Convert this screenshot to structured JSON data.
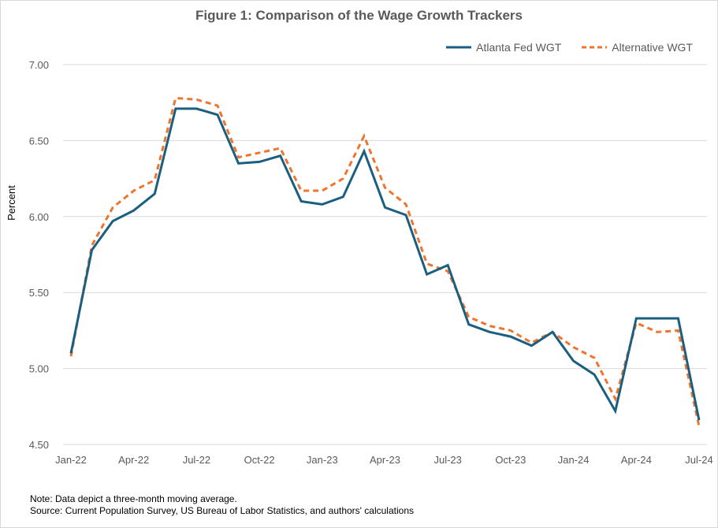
{
  "chart_data": {
    "type": "line",
    "title": "Figure 1: Comparison of the Wage Growth Trackers",
    "ylabel": "Percent",
    "xlabel": "",
    "ylim": [
      4.5,
      7.0
    ],
    "yticks": [
      "7.00",
      "6.50",
      "6.00",
      "5.50",
      "5.00",
      "4.50"
    ],
    "ytick_values": [
      7.0,
      6.5,
      6.0,
      5.5,
      5.0,
      4.5
    ],
    "xticks": [
      "Jan-22",
      "Apr-22",
      "Jul-22",
      "Oct-22",
      "Jan-23",
      "Apr-23",
      "Jul-23",
      "Oct-23",
      "Jan-24",
      "Apr-24",
      "Jul-24"
    ],
    "x": [
      "Jan-22",
      "Feb-22",
      "Mar-22",
      "Apr-22",
      "May-22",
      "Jun-22",
      "Jul-22",
      "Aug-22",
      "Sep-22",
      "Oct-22",
      "Nov-22",
      "Dec-22",
      "Jan-23",
      "Feb-23",
      "Mar-23",
      "Apr-23",
      "May-23",
      "Jun-23",
      "Jul-23",
      "Aug-23",
      "Sep-23",
      "Oct-23",
      "Nov-23",
      "Dec-23",
      "Jan-24",
      "Feb-24",
      "Mar-24",
      "Apr-24",
      "May-24",
      "Jun-24",
      "Jul-24"
    ],
    "grid": true,
    "legend": "top-right",
    "series": [
      {
        "name": "Atlanta Fed WGT",
        "color": "#1b5f80",
        "style": "solid",
        "values": [
          5.1,
          5.78,
          5.97,
          6.04,
          6.15,
          6.71,
          6.71,
          6.67,
          6.35,
          6.36,
          6.4,
          6.1,
          6.08,
          6.13,
          6.43,
          6.06,
          6.01,
          5.62,
          5.68,
          5.29,
          5.24,
          5.21,
          5.15,
          5.24,
          5.05,
          4.96,
          4.72,
          5.33,
          5.33,
          5.33,
          4.66
        ]
      },
      {
        "name": "Alternative WGT",
        "color": "#ed7530",
        "style": "dashed",
        "values": [
          5.08,
          5.81,
          6.06,
          6.17,
          6.24,
          6.78,
          6.77,
          6.73,
          6.39,
          6.42,
          6.45,
          6.17,
          6.17,
          6.25,
          6.53,
          6.19,
          6.08,
          5.69,
          5.64,
          5.34,
          5.28,
          5.25,
          5.17,
          5.24,
          5.14,
          5.07,
          4.8,
          5.3,
          5.24,
          5.25,
          4.62
        ]
      }
    ]
  },
  "notes": {
    "note": "Note: Data depict a three-month moving average.",
    "source": "Source:  Current Population Survey, US Bureau of Labor Statistics, and authors' calculations"
  }
}
